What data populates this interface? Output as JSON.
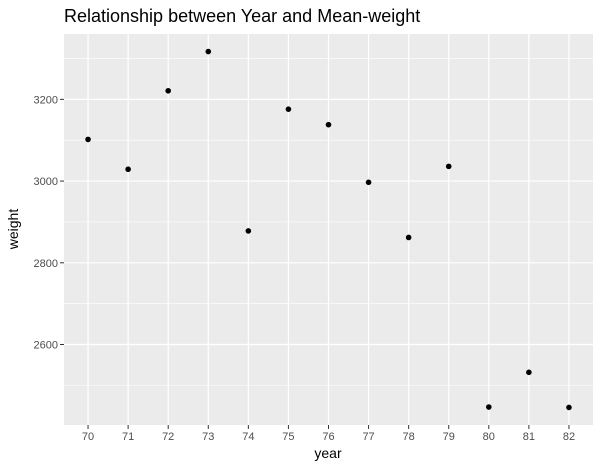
{
  "chart_data": {
    "type": "scatter",
    "title": "Relationship between Year and Mean-weight",
    "xlabel": "year",
    "ylabel": "weight",
    "x": [
      70,
      71,
      72,
      73,
      74,
      75,
      76,
      77,
      78,
      79,
      80,
      81,
      82
    ],
    "y": [
      3102,
      3029,
      3221,
      3317,
      2878,
      3176,
      3138,
      2997,
      2862,
      3036,
      2447,
      2532,
      2446
    ],
    "xticks": [
      "70",
      "71",
      "72",
      "73",
      "74",
      "75",
      "76",
      "77",
      "78",
      "79",
      "80",
      "81",
      "82"
    ],
    "yticks": [
      2600,
      2800,
      3000,
      3200
    ],
    "xlim": [
      69.4,
      82.6
    ],
    "ylim": [
      2403,
      3360
    ],
    "grid": true,
    "point_color": "#000000",
    "panel_color": "#ebebeb",
    "grid_color": "#ffffff"
  }
}
